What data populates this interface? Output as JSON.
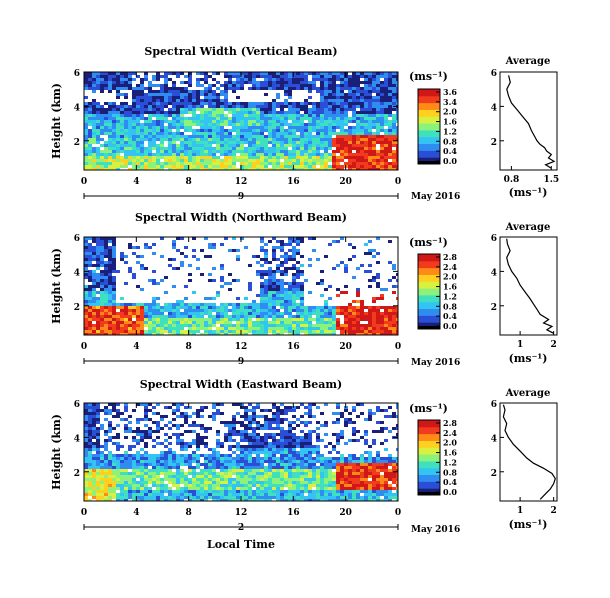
{
  "figure": {
    "colorbar_unit": "(ms⁻¹)",
    "date_label": "May 2016",
    "xlabel_bottom": "Local Time",
    "avg_title": "Average",
    "avg_xlabel": "(ms⁻¹)",
    "colors": {
      "scale": [
        "#1a1f7a",
        "#2a4fd6",
        "#2f8cf0",
        "#33c4f2",
        "#3fe0c0",
        "#8df27a",
        "#d8f040",
        "#ffd020",
        "#ff8a18",
        "#f23a1c",
        "#d01818"
      ],
      "lowbar": "#000000"
    }
  },
  "chart_data": [
    {
      "type": "heatmap",
      "title": "Spectral Width (Vertical Beam)",
      "ylabel": "Height (km)",
      "yticks": [
        "6",
        "4",
        "2"
      ],
      "ylim": [
        0.3,
        6
      ],
      "xticks": [
        "0",
        "4",
        "8",
        "12",
        "16",
        "20",
        "0"
      ],
      "xlim": [
        0,
        24
      ],
      "day_label": "9",
      "colorbar": {
        "ticks": [
          "3.6",
          "3.4",
          "2.0",
          "1.6",
          "1.2",
          "0.8",
          "0.4",
          "0.0"
        ],
        "max": 3.6
      },
      "average": {
        "xticks": [
          "0.8",
          "1.5"
        ],
        "xlim": [
          0.6,
          1.6
        ],
        "yticks": [
          "6",
          "4",
          "2"
        ],
        "ylim": [
          0.3,
          6
        ],
        "height": [
          0.4,
          0.6,
          0.8,
          1.0,
          1.2,
          1.4,
          1.6,
          1.8,
          2.0,
          2.3,
          2.6,
          3.0,
          3.4,
          3.8,
          4.2,
          4.6,
          5.0,
          5.4,
          5.8
        ],
        "value": [
          1.5,
          1.4,
          1.55,
          1.45,
          1.5,
          1.42,
          1.38,
          1.3,
          1.25,
          1.2,
          1.15,
          1.1,
          1.0,
          0.9,
          0.8,
          0.75,
          0.72,
          0.78,
          0.75
        ]
      }
    },
    {
      "type": "heatmap",
      "title": "Spectral Width (Northward Beam)",
      "ylabel": "Height (km)",
      "yticks": [
        "6",
        "4",
        "2"
      ],
      "ylim": [
        0.3,
        6
      ],
      "xticks": [
        "0",
        "4",
        "8",
        "12",
        "16",
        "20",
        "0"
      ],
      "xlim": [
        0,
        24
      ],
      "day_label": "9",
      "colorbar": {
        "ticks": [
          "2.8",
          "2.4",
          "2.0",
          "1.6",
          "1.2",
          "0.8",
          "0.4",
          "0.0"
        ],
        "max": 2.8
      },
      "average": {
        "xticks": [
          "1",
          "2"
        ],
        "xlim": [
          0.4,
          2.1
        ],
        "yticks": [
          "6",
          "4",
          "2"
        ],
        "ylim": [
          0.3,
          6
        ],
        "height": [
          0.4,
          0.6,
          0.8,
          1.0,
          1.2,
          1.5,
          1.8,
          2.1,
          2.4,
          2.8,
          3.2,
          3.6,
          4.0,
          4.4,
          4.8,
          5.2,
          5.6,
          5.9
        ],
        "value": [
          2.0,
          1.8,
          1.95,
          1.7,
          1.85,
          1.6,
          1.5,
          1.4,
          1.3,
          1.15,
          1.0,
          0.9,
          0.75,
          0.65,
          0.6,
          0.7,
          0.62,
          0.6
        ]
      }
    },
    {
      "type": "heatmap",
      "title": "Spectral Width (Eastward Beam)",
      "ylabel": "Height (km)",
      "yticks": [
        "6",
        "4",
        "2"
      ],
      "ylim": [
        0.3,
        6
      ],
      "xticks": [
        "0",
        "4",
        "8",
        "12",
        "16",
        "20",
        "0"
      ],
      "xlim": [
        0,
        24
      ],
      "day_label": "2",
      "colorbar": {
        "ticks": [
          "2.8",
          "2.4",
          "2.0",
          "1.6",
          "1.2",
          "0.8",
          "0.4",
          "0.0"
        ],
        "max": 2.8
      },
      "average": {
        "xticks": [
          "1",
          "2"
        ],
        "xlim": [
          0.4,
          2.1
        ],
        "yticks": [
          "6",
          "4",
          "2"
        ],
        "ylim": [
          0.3,
          6
        ],
        "height": [
          0.4,
          0.6,
          0.8,
          1.0,
          1.3,
          1.6,
          1.9,
          2.2,
          2.5,
          2.8,
          3.2,
          3.6,
          4.0,
          4.4,
          4.8,
          5.2,
          5.6,
          5.9
        ],
        "value": [
          1.6,
          1.7,
          1.8,
          1.9,
          2.0,
          2.05,
          1.95,
          1.7,
          1.4,
          1.2,
          1.0,
          0.8,
          0.65,
          0.55,
          0.6,
          0.5,
          0.55,
          0.5
        ]
      }
    }
  ]
}
